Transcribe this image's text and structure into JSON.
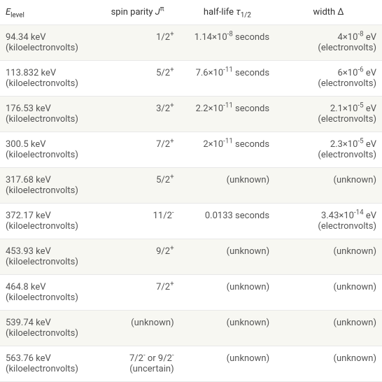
{
  "table": {
    "columns": [
      {
        "label_html": "<span class=\"italic\">E</span><span class=\"sub\">level</span>"
      },
      {
        "label_html": "spin parity <span class=\"italic\">J</span><span class=\"sup\">π</span>"
      },
      {
        "label_html": "half-life <span class=\"italic\">τ</span><span class=\"sub\">1/2</span>"
      },
      {
        "label_html": "width Δ"
      }
    ],
    "rows": [
      {
        "level_html": "94.34 keV (kiloelectronvolts)",
        "spin_html": "1/2<span class=\"sup\">+</span>",
        "halflife_html": "1.14×10<span class=\"sup\">-8</span> seconds",
        "width_html": "4×10<span class=\"sup\">-8</span> eV (electronvolts)"
      },
      {
        "level_html": "113.832 keV (kiloelectronvolts)",
        "spin_html": "5/2<span class=\"sup\">+</span>",
        "halflife_html": "7.6×10<span class=\"sup\">-11</span> seconds",
        "width_html": "6×10<span class=\"sup\">-6</span> eV (electronvolts)"
      },
      {
        "level_html": "176.53 keV (kiloelectronvolts)",
        "spin_html": "3/2<span class=\"sup\">+</span>",
        "halflife_html": "2.2×10<span class=\"sup\">-11</span> seconds",
        "width_html": "2.1×10<span class=\"sup\">-5</span> eV (electronvolts)"
      },
      {
        "level_html": "300.5 keV (kiloelectronvolts)",
        "spin_html": "7/2<span class=\"sup\">+</span>",
        "halflife_html": "2×10<span class=\"sup\">-11</span> seconds",
        "width_html": "2.3×10<span class=\"sup\">-5</span> eV (electronvolts)"
      },
      {
        "level_html": "317.68 keV (kiloelectronvolts)",
        "spin_html": "5/2<span class=\"sup\">+</span>",
        "halflife_html": "(unknown)",
        "width_html": "(unknown)"
      },
      {
        "level_html": "372.17 keV (kiloelectronvolts)",
        "spin_html": "11/2<span class=\"sup\">-</span>",
        "halflife_html": "0.0133 seconds",
        "width_html": "3.43×10<span class=\"sup\">-14</span> eV (electronvolts)"
      },
      {
        "level_html": "453.93 keV (kiloelectronvolts)",
        "spin_html": "9/2<span class=\"sup\">+</span>",
        "halflife_html": "(unknown)",
        "width_html": "(unknown)"
      },
      {
        "level_html": "464.8 keV (kiloelectronvolts)",
        "spin_html": "7/2<span class=\"sup\">+</span>",
        "halflife_html": "(unknown)",
        "width_html": "(unknown)"
      },
      {
        "level_html": "539.74 keV (kiloelectronvolts)",
        "spin_html": "(unknown)",
        "halflife_html": "(unknown)",
        "width_html": "(unknown)"
      },
      {
        "level_html": "563.76 keV (kiloelectronvolts)",
        "spin_html": "7/2<span class=\"sup\">-</span> or 9/2<span class=\"sup\">-</span> (uncertain)",
        "halflife_html": "(unknown)",
        "width_html": "(unknown)"
      }
    ],
    "colors": {
      "even_row_bg": "#f7f7f2",
      "odd_row_bg": "#ffffff",
      "border": "#e8e8e8",
      "text": "#555",
      "header_text": "#333"
    }
  }
}
